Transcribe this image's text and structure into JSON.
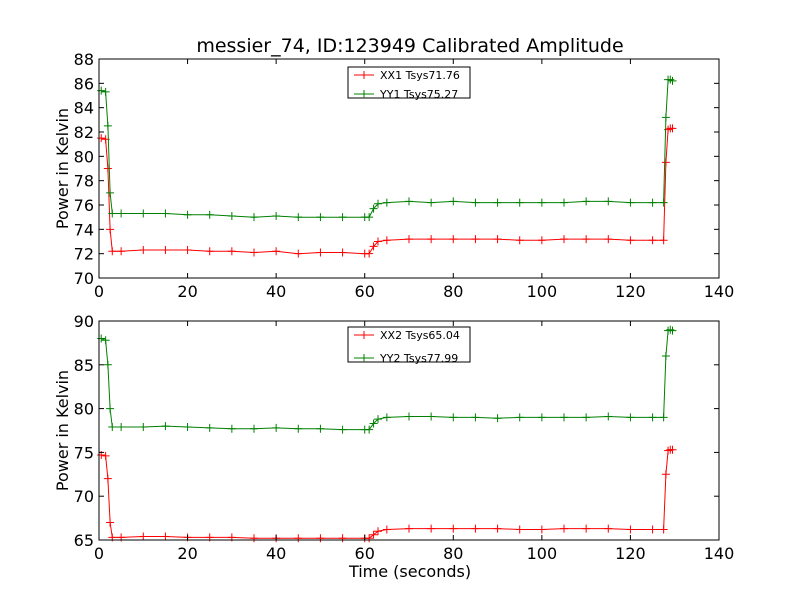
{
  "figure": {
    "title": "messier_74, ID:123949 Calibrated Amplitude",
    "xlabel": "Time (seconds)"
  },
  "chart_data": [
    {
      "type": "line",
      "title": "messier_74, ID:123949 Calibrated Amplitude",
      "xlabel": "",
      "ylabel": "Power in Kelvin",
      "xlim": [
        0,
        140
      ],
      "ylim": [
        70,
        88
      ],
      "xticks": [
        0,
        20,
        40,
        60,
        80,
        100,
        120,
        140
      ],
      "yticks": [
        70,
        72,
        74,
        76,
        78,
        80,
        82,
        84,
        86,
        88
      ],
      "legend": "top-center",
      "series": [
        {
          "name": "XX1 Tsys71.76",
          "color": "#ff0000",
          "marker": "+",
          "x": [
            0.5,
            1.5,
            2.0,
            2.5,
            3,
            5,
            10,
            15,
            20,
            25,
            30,
            35,
            40,
            45,
            50,
            55,
            60,
            61,
            62,
            63,
            65,
            70,
            75,
            80,
            85,
            90,
            95,
            100,
            105,
            110,
            115,
            120,
            125,
            127.5,
            128,
            128.5,
            129,
            129.5
          ],
          "y": [
            81.5,
            81.4,
            79.0,
            74.0,
            72.2,
            72.2,
            72.3,
            72.3,
            72.3,
            72.2,
            72.2,
            72.1,
            72.2,
            72.0,
            72.1,
            72.1,
            72.0,
            72.0,
            72.6,
            73.0,
            73.1,
            73.2,
            73.2,
            73.2,
            73.2,
            73.2,
            73.1,
            73.1,
            73.2,
            73.2,
            73.2,
            73.1,
            73.1,
            73.1,
            79.5,
            82.2,
            82.3,
            82.3
          ]
        },
        {
          "name": "YY1 Tsys75.27",
          "color": "#008000",
          "marker": "+",
          "x": [
            0.5,
            1.5,
            2.0,
            2.5,
            3,
            5,
            10,
            15,
            20,
            25,
            30,
            35,
            40,
            45,
            50,
            55,
            60,
            61,
            62,
            63,
            65,
            70,
            75,
            80,
            85,
            90,
            95,
            100,
            105,
            110,
            115,
            120,
            125,
            127.5,
            128,
            128.5,
            129,
            129.5
          ],
          "y": [
            85.4,
            85.3,
            82.5,
            77.0,
            75.3,
            75.3,
            75.3,
            75.3,
            75.2,
            75.2,
            75.1,
            75.0,
            75.1,
            75.0,
            75.0,
            75.0,
            75.0,
            75.0,
            75.7,
            76.1,
            76.2,
            76.3,
            76.2,
            76.3,
            76.2,
            76.2,
            76.2,
            76.2,
            76.2,
            76.3,
            76.3,
            76.2,
            76.2,
            76.2,
            83.2,
            86.3,
            86.3,
            86.2
          ]
        }
      ]
    },
    {
      "type": "line",
      "xlabel": "Time (seconds)",
      "ylabel": "Power in Kelvin",
      "xlim": [
        0,
        140
      ],
      "ylim": [
        65,
        90
      ],
      "xticks": [
        0,
        20,
        40,
        60,
        80,
        100,
        120,
        140
      ],
      "yticks": [
        65,
        70,
        75,
        80,
        85,
        90
      ],
      "legend": "top-center",
      "series": [
        {
          "name": "XX2 Tsys65.04",
          "color": "#ff0000",
          "marker": "+",
          "x": [
            0.5,
            1.5,
            2.0,
            2.5,
            3,
            5,
            10,
            15,
            20,
            25,
            30,
            35,
            40,
            45,
            50,
            55,
            60,
            61,
            62,
            63,
            65,
            70,
            75,
            80,
            85,
            90,
            95,
            100,
            105,
            110,
            115,
            120,
            125,
            127.5,
            128,
            128.5,
            129,
            129.5
          ],
          "y": [
            74.7,
            74.6,
            72.0,
            67.0,
            65.3,
            65.3,
            65.4,
            65.4,
            65.3,
            65.3,
            65.3,
            65.2,
            65.2,
            65.2,
            65.2,
            65.2,
            65.2,
            65.2,
            65.6,
            66.0,
            66.2,
            66.3,
            66.3,
            66.3,
            66.3,
            66.3,
            66.2,
            66.2,
            66.3,
            66.3,
            66.3,
            66.2,
            66.2,
            66.2,
            72.5,
            75.2,
            75.3,
            75.3
          ]
        },
        {
          "name": "YY2 Tsys77.99",
          "color": "#008000",
          "marker": "+",
          "x": [
            0.5,
            1.5,
            2.0,
            2.5,
            3,
            5,
            10,
            15,
            20,
            25,
            30,
            35,
            40,
            45,
            50,
            55,
            60,
            61,
            62,
            63,
            65,
            70,
            75,
            80,
            85,
            90,
            95,
            100,
            105,
            110,
            115,
            120,
            125,
            127.5,
            128,
            128.5,
            129,
            129.5
          ],
          "y": [
            88.0,
            87.8,
            85.0,
            80.0,
            77.9,
            77.9,
            77.9,
            78.0,
            77.9,
            77.8,
            77.7,
            77.7,
            77.8,
            77.7,
            77.7,
            77.6,
            77.6,
            77.6,
            78.3,
            78.8,
            79.0,
            79.1,
            79.1,
            79.0,
            79.0,
            78.9,
            79.0,
            79.0,
            79.0,
            79.0,
            79.1,
            79.0,
            79.0,
            79.0,
            86.0,
            88.9,
            89.0,
            88.9
          ]
        }
      ]
    }
  ]
}
